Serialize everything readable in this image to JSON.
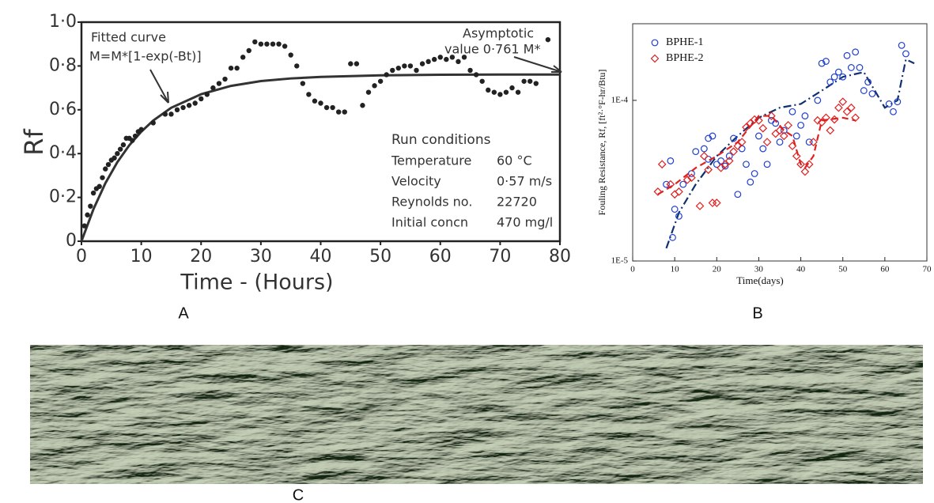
{
  "chart_data": [
    {
      "type": "scatter",
      "x": [
        0.5,
        1,
        1.5,
        2,
        2.5,
        3,
        3.5,
        4,
        4.5,
        5,
        5.5,
        6,
        6.5,
        7,
        7.5,
        8,
        8.5,
        9,
        9.5,
        10,
        12,
        14,
        15,
        16,
        17,
        18,
        19,
        20,
        21,
        22,
        23,
        24,
        25,
        26,
        27,
        28,
        29,
        30,
        31,
        32,
        33,
        34,
        35,
        36,
        37,
        38,
        39,
        40,
        41,
        42,
        43,
        44,
        45,
        46,
        47,
        48,
        49,
        50,
        51,
        52,
        53,
        54,
        55,
        56,
        57,
        58,
        59,
        60,
        61,
        62,
        63,
        64,
        65,
        66,
        67,
        68,
        69,
        70,
        71,
        72,
        73,
        74,
        75,
        76,
        78
      ],
      "values": [
        0.07,
        0.12,
        0.16,
        0.22,
        0.24,
        0.25,
        0.29,
        0.33,
        0.35,
        0.37,
        0.38,
        0.4,
        0.42,
        0.44,
        0.47,
        0.47,
        0.46,
        0.48,
        0.5,
        0.51,
        0.54,
        0.58,
        0.58,
        0.6,
        0.61,
        0.62,
        0.63,
        0.65,
        0.67,
        0.7,
        0.72,
        0.74,
        0.79,
        0.79,
        0.84,
        0.87,
        0.91,
        0.9,
        0.9,
        0.9,
        0.9,
        0.89,
        0.85,
        0.8,
        0.72,
        0.67,
        0.64,
        0.63,
        0.61,
        0.61,
        0.59,
        0.59,
        0.81,
        0.81,
        0.62,
        0.68,
        0.71,
        0.73,
        0.76,
        0.78,
        0.79,
        0.8,
        0.8,
        0.78,
        0.81,
        0.82,
        0.83,
        0.84,
        0.83,
        0.84,
        0.82,
        0.84,
        0.78,
        0.76,
        0.73,
        0.69,
        0.68,
        0.67,
        0.68,
        0.7,
        0.68,
        0.73,
        0.73,
        0.72,
        0.92
      ],
      "color": "#222222",
      "curve": {
        "x": [
          0,
          2,
          4,
          6,
          8,
          10,
          12,
          15,
          20,
          25,
          30,
          35,
          40,
          50,
          60,
          70,
          80
        ],
        "values": [
          0,
          0.146,
          0.265,
          0.361,
          0.438,
          0.5,
          0.551,
          0.609,
          0.671,
          0.709,
          0.731,
          0.743,
          0.75,
          0.757,
          0.76,
          0.761,
          0.761
        ]
      },
      "xlim": [
        0,
        80
      ],
      "xticks": [
        0,
        10,
        20,
        30,
        40,
        50,
        60,
        70,
        80
      ],
      "ylim": [
        0,
        1.0
      ],
      "yticks": [
        0,
        {
          "value": 0.2,
          "label": "0·2"
        },
        {
          "value": 0.4,
          "label": "0·4"
        },
        {
          "value": 0.6,
          "label": "0·6"
        },
        {
          "value": 0.8,
          "label": "0·8"
        },
        {
          "value": 1.0,
          "label": "1·0"
        }
      ],
      "x_label": "Time - (Hours)",
      "y_label": "Rf",
      "annotations": {
        "fitted": "Fitted curve",
        "equation": "M=M*[1-exp(-Bt)]",
        "asymptotic": "Asymptotic",
        "asymptote_value": "value 0·761 M*"
      },
      "run_conditions": {
        "title": "Run conditions",
        "rows": [
          [
            "Temperature",
            "60 °C"
          ],
          [
            "Velocity",
            "0·57 m/s"
          ],
          [
            "Reynolds no.",
            "22720"
          ],
          [
            "Initial concn",
            "470 mg/l"
          ]
        ]
      }
    },
    {
      "type": "scatter",
      "log_y": true,
      "series": [
        {
          "name": "BPHE-1",
          "color": "#1f3fd0",
          "marker": "circle",
          "x": [
            8,
            9,
            9.5,
            10,
            11,
            12,
            14,
            15,
            17,
            18,
            18,
            19,
            20,
            21,
            22,
            23,
            24,
            25,
            26,
            27,
            28,
            29,
            30,
            31,
            32,
            33,
            34,
            35,
            36,
            38,
            39,
            40,
            41,
            42,
            44,
            45,
            46,
            47,
            48,
            49,
            50,
            51,
            52,
            53,
            54,
            55,
            56,
            57,
            61,
            62,
            63,
            64,
            65
          ],
          "values": [
            3e-05,
            4.2e-05,
            1.4e-05,
            2.1e-05,
            1.9e-05,
            3e-05,
            3.5e-05,
            4.8e-05,
            5e-05,
            4.3e-05,
            5.8e-05,
            6e-05,
            4e-05,
            4.2e-05,
            3.9e-05,
            4.5e-05,
            5.8e-05,
            2.6e-05,
            5e-05,
            4e-05,
            3.1e-05,
            3.5e-05,
            6e-05,
            5e-05,
            4e-05,
            7.5e-05,
            7.2e-05,
            5.5e-05,
            6.5e-05,
            8.5e-05,
            6e-05,
            7e-05,
            8e-05,
            5.5e-05,
            0.0001,
            0.00017,
            0.000175,
            0.00013,
            0.00014,
            0.00015,
            0.00014,
            0.00019,
            0.00016,
            0.0002,
            0.00016,
            0.000115,
            0.00013,
            0.00011,
            9.5e-05,
            8.5e-05,
            9.8e-05,
            0.00022,
            0.000195
          ],
          "trend_color": "#10306e",
          "trend_x": [
            8,
            11,
            15,
            20,
            25,
            30,
            35,
            40,
            45,
            50,
            55,
            60,
            63,
            65,
            67
          ],
          "trend_values": [
            1.2e-05,
            2e-05,
            3e-05,
            4.5e-05,
            6e-05,
            7.8e-05,
            9e-05,
            9.5e-05,
            0.000115,
            0.00014,
            0.00015,
            9e-05,
            0.0001,
            0.00018,
            0.00017
          ]
        },
        {
          "name": "BPHE-2",
          "color": "#e02020",
          "marker": "diamond",
          "x": [
            6,
            7,
            9,
            10,
            11,
            13,
            14,
            16,
            17,
            18,
            19,
            20,
            21,
            22,
            23,
            24,
            25,
            26,
            27,
            28,
            29,
            30,
            31,
            32,
            33,
            34,
            35,
            36,
            37,
            38,
            39,
            40,
            41,
            42,
            43,
            44,
            45,
            46,
            47,
            48,
            49,
            50,
            51,
            52,
            53
          ],
          "values": [
            2.7e-05,
            4e-05,
            3e-05,
            2.6e-05,
            2.7e-05,
            3.2e-05,
            3.3e-05,
            2.2e-05,
            4.5e-05,
            3.7e-05,
            2.3e-05,
            2.3e-05,
            3.8e-05,
            4e-05,
            4.2e-05,
            4.8e-05,
            5.2e-05,
            5.5e-05,
            6.8e-05,
            7.2e-05,
            7.6e-05,
            7.5e-05,
            6.7e-05,
            5.5e-05,
            8e-05,
            6.2e-05,
            6.5e-05,
            6e-05,
            7e-05,
            5.2e-05,
            4.5e-05,
            4e-05,
            3.6e-05,
            4e-05,
            5.5e-05,
            7.5e-05,
            7.3e-05,
            7.8e-05,
            6.5e-05,
            7.6e-05,
            9e-05,
            9.8e-05,
            8.5e-05,
            9e-05,
            7.8e-05
          ],
          "trend_color": "#e02020",
          "trend_x": [
            6,
            10,
            15,
            20,
            25,
            30,
            33,
            36,
            38,
            40,
            41,
            43,
            45,
            50,
            53
          ],
          "trend_values": [
            2.6e-05,
            3e-05,
            3.8e-05,
            4.5e-05,
            5.5e-05,
            8e-05,
            8e-05,
            6.5e-05,
            6e-05,
            4e-05,
            3.8e-05,
            4.5e-05,
            7.5e-05,
            7.8e-05,
            7.5e-05
          ]
        }
      ],
      "xlim": [
        0,
        70
      ],
      "xticks": [
        0,
        10,
        20,
        30,
        40,
        50,
        60,
        70
      ],
      "ylim": [
        1e-05,
        0.0003
      ],
      "yticks": [
        {
          "value": 1e-05,
          "label": "1E-5"
        },
        {
          "value": 0.0001,
          "label": "1E-4"
        }
      ],
      "x_label": "Time(days)",
      "y_label": "Fouling Resistance, Rf, [ft²·°F-hr/Btu]",
      "legend": "upper left"
    }
  ],
  "panel_labels": [
    "A",
    "B",
    "C"
  ]
}
